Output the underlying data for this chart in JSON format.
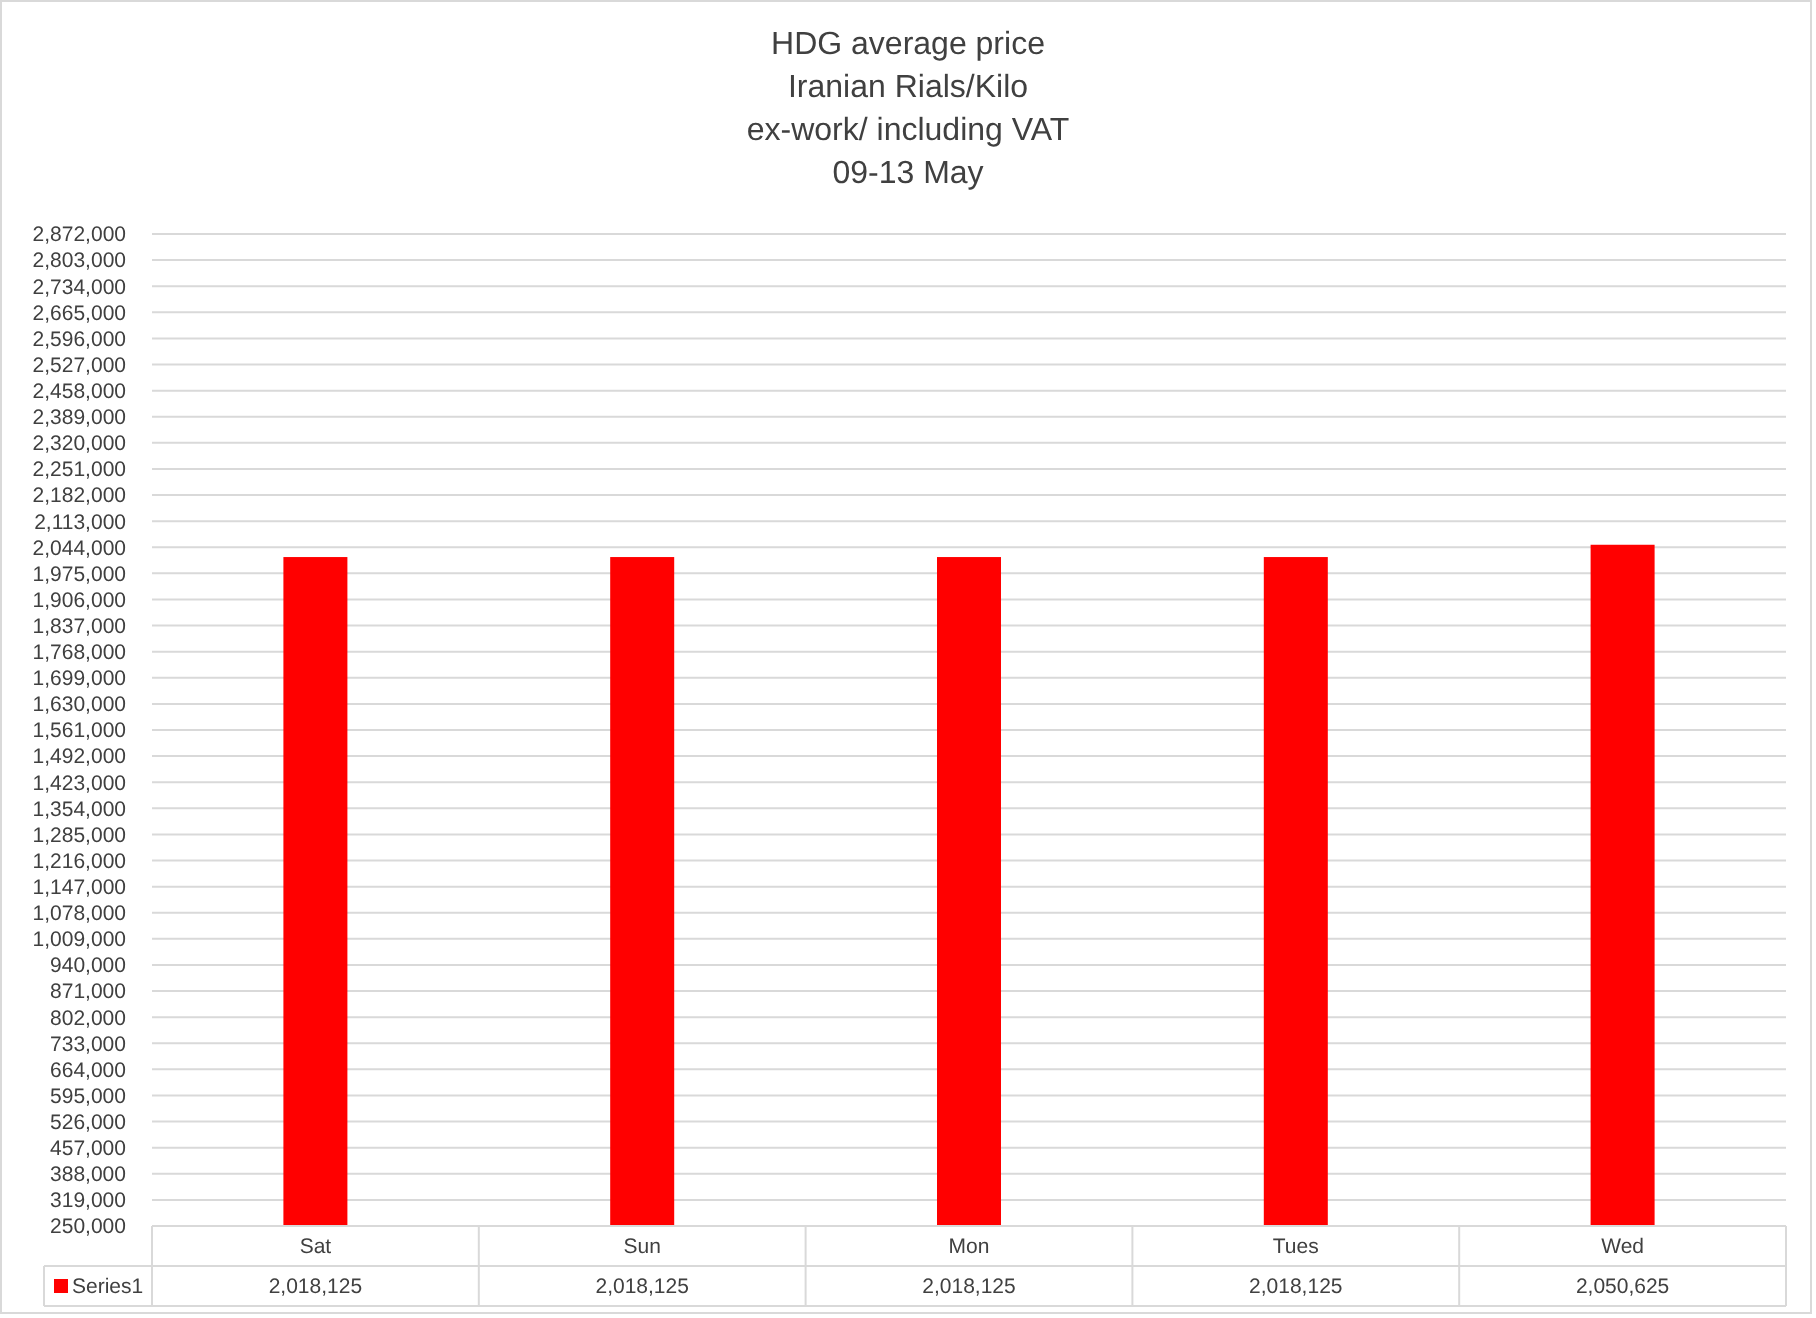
{
  "chart_data": {
    "type": "bar",
    "title": "HDG average price\nIranian Rials/Kilo\nex-work/ including VAT\n09-13 May",
    "categories": [
      "Sat",
      "Sun",
      "Mon",
      "Tues",
      "Wed"
    ],
    "series": [
      {
        "name": "Series1",
        "color": "#ff0000",
        "values": [
          2018125,
          2018125,
          2018125,
          2018125,
          2050625
        ],
        "value_labels": [
          "2,018,125",
          "2,018,125",
          "2,018,125",
          "2,018,125",
          "2,050,625"
        ]
      }
    ],
    "ylim": [
      250000,
      2872000
    ],
    "yticks": [
      {
        "value": 250000,
        "label": "250,000"
      },
      {
        "value": 319000,
        "label": "319,000"
      },
      {
        "value": 388000,
        "label": "388,000"
      },
      {
        "value": 457000,
        "label": "457,000"
      },
      {
        "value": 526000,
        "label": "526,000"
      },
      {
        "value": 595000,
        "label": "595,000"
      },
      {
        "value": 664000,
        "label": "664,000"
      },
      {
        "value": 733000,
        "label": "733,000"
      },
      {
        "value": 802000,
        "label": "802,000"
      },
      {
        "value": 871000,
        "label": "871,000"
      },
      {
        "value": 940000,
        "label": "940,000"
      },
      {
        "value": 1009000,
        "label": "1,009,000"
      },
      {
        "value": 1078000,
        "label": "1,078,000"
      },
      {
        "value": 1147000,
        "label": "1,147,000"
      },
      {
        "value": 1216000,
        "label": "1,216,000"
      },
      {
        "value": 1285000,
        "label": "1,285,000"
      },
      {
        "value": 1354000,
        "label": "1,354,000"
      },
      {
        "value": 1423000,
        "label": "1,423,000"
      },
      {
        "value": 1492000,
        "label": "1,492,000"
      },
      {
        "value": 1561000,
        "label": "1,561,000"
      },
      {
        "value": 1630000,
        "label": "1,630,000"
      },
      {
        "value": 1699000,
        "label": "1,699,000"
      },
      {
        "value": 1768000,
        "label": "1,768,000"
      },
      {
        "value": 1837000,
        "label": "1,837,000"
      },
      {
        "value": 1906000,
        "label": "1,906,000"
      },
      {
        "value": 1975000,
        "label": "1,975,000"
      },
      {
        "value": 2044000,
        "label": "2,044,000"
      },
      {
        "value": 2113000,
        "label": "2,113,000"
      },
      {
        "value": 2182000,
        "label": "2,182,000"
      },
      {
        "value": 2251000,
        "label": "2,251,000"
      },
      {
        "value": 2320000,
        "label": "2,320,000"
      },
      {
        "value": 2389000,
        "label": "2,389,000"
      },
      {
        "value": 2458000,
        "label": "2,458,000"
      },
      {
        "value": 2527000,
        "label": "2,527,000"
      },
      {
        "value": 2596000,
        "label": "2,596,000"
      },
      {
        "value": 2665000,
        "label": "2,665,000"
      },
      {
        "value": 2734000,
        "label": "2,734,000"
      },
      {
        "value": 2803000,
        "label": "2,803,000"
      },
      {
        "value": 2872000,
        "label": "2,872,000"
      }
    ],
    "grid": "y",
    "legend": "bottom"
  }
}
